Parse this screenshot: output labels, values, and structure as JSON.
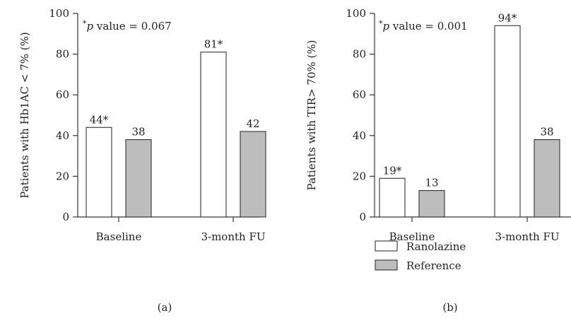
{
  "chart_data": [
    {
      "type": "bar",
      "panel_label": "(a)",
      "annotation": {
        "star": "*",
        "p": "p",
        "rest": " value = 0.067"
      },
      "ylabel": "Patients with Hb1AC < 7% (%)",
      "ylim": [
        0,
        100
      ],
      "yticks": [
        "0",
        "20",
        "40",
        "60",
        "80",
        "100"
      ],
      "categories": [
        "Baseline",
        "3-month FU"
      ],
      "series": [
        {
          "name": "Ranolazine",
          "values": [
            44,
            81
          ],
          "labels": [
            "44*",
            "81*"
          ],
          "color": "#ffffff"
        },
        {
          "name": "Reference",
          "values": [
            38,
            42
          ],
          "labels": [
            "38",
            "42"
          ],
          "color": "#bdbdbd"
        }
      ]
    },
    {
      "type": "bar",
      "panel_label": "(b)",
      "annotation": {
        "star": "*",
        "p": "p",
        "rest": " value = 0.001"
      },
      "ylabel": "Patients with TIR> 70% (%)",
      "ylim": [
        0,
        100
      ],
      "yticks": [
        "0",
        "20",
        "40",
        "60",
        "80",
        "100"
      ],
      "categories": [
        "Baseline",
        "3-month FU"
      ],
      "series": [
        {
          "name": "Ranolazine",
          "values": [
            19,
            94
          ],
          "labels": [
            "19*",
            "94*"
          ],
          "color": "#ffffff"
        },
        {
          "name": "Reference",
          "values": [
            13,
            38
          ],
          "labels": [
            "13",
            "38"
          ],
          "color": "#bdbdbd"
        }
      ],
      "legend": [
        {
          "label": "Ranolazine",
          "color": "#ffffff"
        },
        {
          "label": "Reference",
          "color": "#bdbdbd"
        }
      ]
    }
  ]
}
